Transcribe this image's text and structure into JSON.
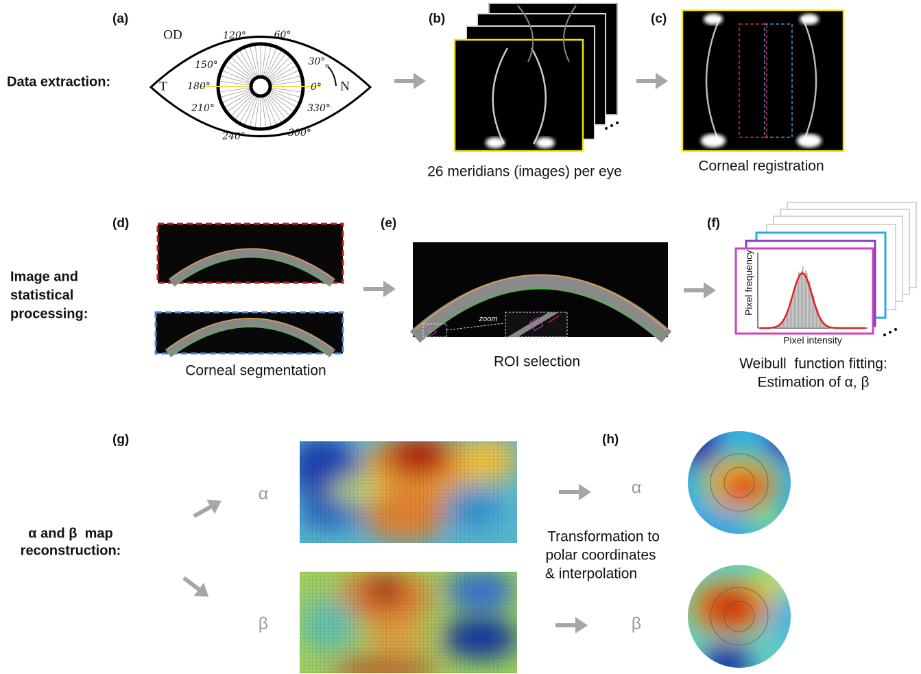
{
  "rows": [
    {
      "label": [
        "Data extraction:"
      ]
    },
    {
      "label": [
        "Image and",
        "statistical",
        "processing:"
      ]
    },
    {
      "label": [
        "α and β  map",
        "reconstruction:"
      ]
    }
  ],
  "panels": {
    "a": {
      "tag": "(a)",
      "eye": "OD",
      "temporal": "T",
      "nasal": "N",
      "angles": [
        "120°",
        "60°",
        "150°",
        "30°",
        "180°",
        "0°",
        "210°",
        "330°",
        "240°",
        "300°"
      ]
    },
    "b": {
      "tag": "(b)",
      "caption": "26 meridians (images) per eye"
    },
    "c": {
      "tag": "(c)",
      "caption": "Corneal registration"
    },
    "d": {
      "tag": "(d)",
      "caption": "Corneal segmentation"
    },
    "e": {
      "tag": "(e)",
      "caption": "ROI selection",
      "zoom": "zoom"
    },
    "f": {
      "tag": "(f)",
      "y_axis": "Pixel frequency",
      "x_axis": "Pixel intensity",
      "caption": [
        "Weibull  function fitting:",
        "Estimation of α, β"
      ]
    },
    "g": {
      "tag": "(g)",
      "alpha": "α",
      "beta": "β"
    },
    "h": {
      "tag": "(h)",
      "alpha": "α",
      "beta": "β",
      "caption": [
        "Transformation to",
        "polar coordinates",
        "& interpolation"
      ]
    }
  }
}
